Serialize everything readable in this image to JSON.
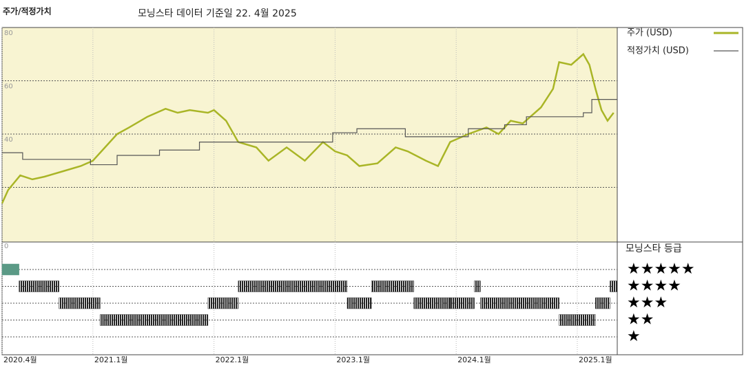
{
  "chart_data": {
    "type": "line",
    "title": "주가/적정가치",
    "subtitle": "모닝스타 데이터 기준일 22. 4월 2025",
    "xlim": [
      2020.25,
      2025.33
    ],
    "xticks": [
      {
        "value": 2020.25,
        "label": "2020.4월"
      },
      {
        "value": 2021.0,
        "label": "2021.1월"
      },
      {
        "value": 2022.0,
        "label": "2022.1월"
      },
      {
        "value": 2023.0,
        "label": "2023.1월"
      },
      {
        "value": 2024.0,
        "label": "2024.1월"
      },
      {
        "value": 2025.0,
        "label": "2025.1월"
      }
    ],
    "ylim": [
      0,
      80
    ],
    "yticks": [
      0,
      40,
      60,
      80
    ],
    "grid_lines": [
      20,
      40,
      60
    ],
    "series": [
      {
        "name": "주가 (USD)",
        "color": "#a9b526",
        "shape": "linear",
        "x": [
          2020.25,
          2020.3,
          2020.4,
          2020.5,
          2020.6,
          2020.75,
          2020.9,
          2021.0,
          2021.1,
          2021.2,
          2021.3,
          2021.45,
          2021.6,
          2021.7,
          2021.8,
          2021.95,
          2022.0,
          2022.1,
          2022.2,
          2022.35,
          2022.45,
          2022.6,
          2022.75,
          2022.9,
          2023.0,
          2023.1,
          2023.2,
          2023.35,
          2023.5,
          2023.6,
          2023.75,
          2023.85,
          2023.95,
          2024.1,
          2024.25,
          2024.35,
          2024.45,
          2024.55,
          2024.7,
          2024.8,
          2024.85,
          2024.95,
          2025.05,
          2025.1,
          2025.15,
          2025.2,
          2025.25,
          2025.3
        ],
        "values": [
          14,
          19,
          24.5,
          23,
          24,
          26,
          28,
          30,
          35,
          40,
          42.5,
          46.5,
          49.5,
          48,
          49,
          48,
          49,
          45,
          37,
          35,
          30,
          35,
          30,
          37,
          33.5,
          32,
          28,
          29,
          35,
          33.5,
          30,
          28,
          37,
          40,
          42.5,
          40,
          45,
          44,
          50,
          57,
          67,
          66,
          70,
          66,
          57,
          49,
          45,
          48
        ]
      },
      {
        "name": "적정가치 (USD)",
        "color": "#555555",
        "shape": "step",
        "x": [
          2020.25,
          2020.42,
          2020.98,
          2021.2,
          2021.55,
          2021.88,
          2022.98,
          2023.18,
          2023.58,
          2024.1,
          2024.4,
          2024.58,
          2025.05,
          2025.12
        ],
        "values": [
          33,
          30.5,
          28.5,
          32,
          34,
          37,
          40.5,
          42,
          39,
          42,
          43.5,
          46.5,
          48,
          53
        ]
      }
    ],
    "rating_title": "모닝스타 등급",
    "rating_labels": [
      "★★★★★",
      "★★★★",
      "★★★",
      "★★",
      "★"
    ],
    "rating_levels": [
      5,
      4,
      3,
      2,
      1
    ],
    "ratings": [
      {
        "start": 2020.25,
        "end": 2020.39,
        "rating": 5
      },
      {
        "start": 2020.39,
        "end": 2020.72,
        "rating": 4
      },
      {
        "start": 2020.72,
        "end": 2021.06,
        "rating": 3
      },
      {
        "start": 2021.06,
        "end": 2021.95,
        "rating": 2
      },
      {
        "start": 2021.95,
        "end": 2022.2,
        "rating": 3
      },
      {
        "start": 2022.2,
        "end": 2023.1,
        "rating": 4
      },
      {
        "start": 2023.1,
        "end": 2023.3,
        "rating": 3
      },
      {
        "start": 2023.3,
        "end": 2023.65,
        "rating": 4
      },
      {
        "start": 2023.65,
        "end": 2023.95,
        "rating": 3
      },
      {
        "start": 2023.95,
        "end": 2024.15,
        "rating": 3
      },
      {
        "start": 2024.15,
        "end": 2024.2,
        "rating": 4
      },
      {
        "start": 2024.2,
        "end": 2024.85,
        "rating": 3
      },
      {
        "start": 2024.85,
        "end": 2025.15,
        "rating": 2
      },
      {
        "start": 2025.15,
        "end": 2025.27,
        "rating": 3
      },
      {
        "start": 2025.27,
        "end": 2025.33,
        "rating": 4
      }
    ],
    "rating_colors": {
      "5": "#5b9a86",
      "4": "#333333",
      "3": "#333333",
      "2": "#333333",
      "1": "#333333"
    }
  }
}
